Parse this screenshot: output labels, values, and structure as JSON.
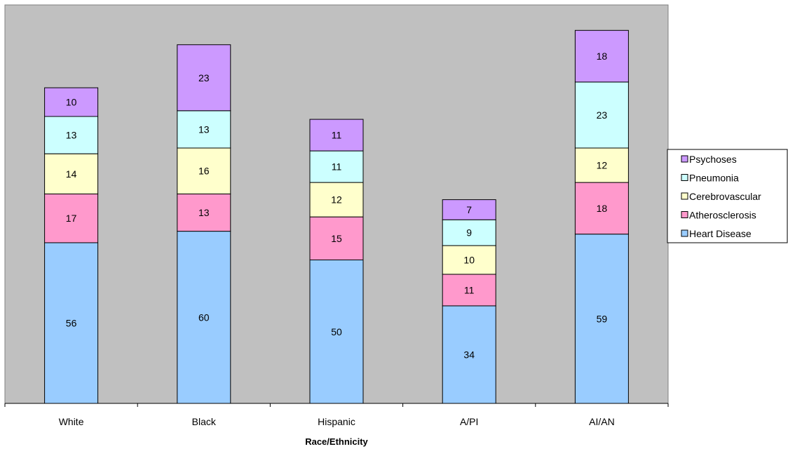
{
  "chart_data": {
    "type": "bar",
    "stacked": true,
    "categories": [
      "White",
      "Black",
      "Hispanic",
      "A/PI",
      "AI/AN"
    ],
    "series": [
      {
        "name": "Heart Disease",
        "values": [
          56,
          60,
          50,
          34,
          59
        ],
        "color": "#99ccff"
      },
      {
        "name": "Atherosclerosis",
        "values": [
          17,
          13,
          15,
          11,
          18
        ],
        "color": "#ff99cc"
      },
      {
        "name": "Cerebrovascular",
        "values": [
          14,
          16,
          12,
          10,
          12
        ],
        "color": "#ffffcc"
      },
      {
        "name": "Pneumonia",
        "values": [
          13,
          13,
          11,
          9,
          23
        ],
        "color": "#ccffff"
      },
      {
        "name": "Psychoses",
        "values": [
          10,
          23,
          11,
          7,
          18
        ],
        "color": "#cc99ff"
      }
    ],
    "xlabel": "Race/Ethnicity",
    "ylabel": "",
    "ylim": [
      0,
      130
    ],
    "grid": false,
    "legend": "right",
    "plot_background": "#c0c0c0"
  }
}
